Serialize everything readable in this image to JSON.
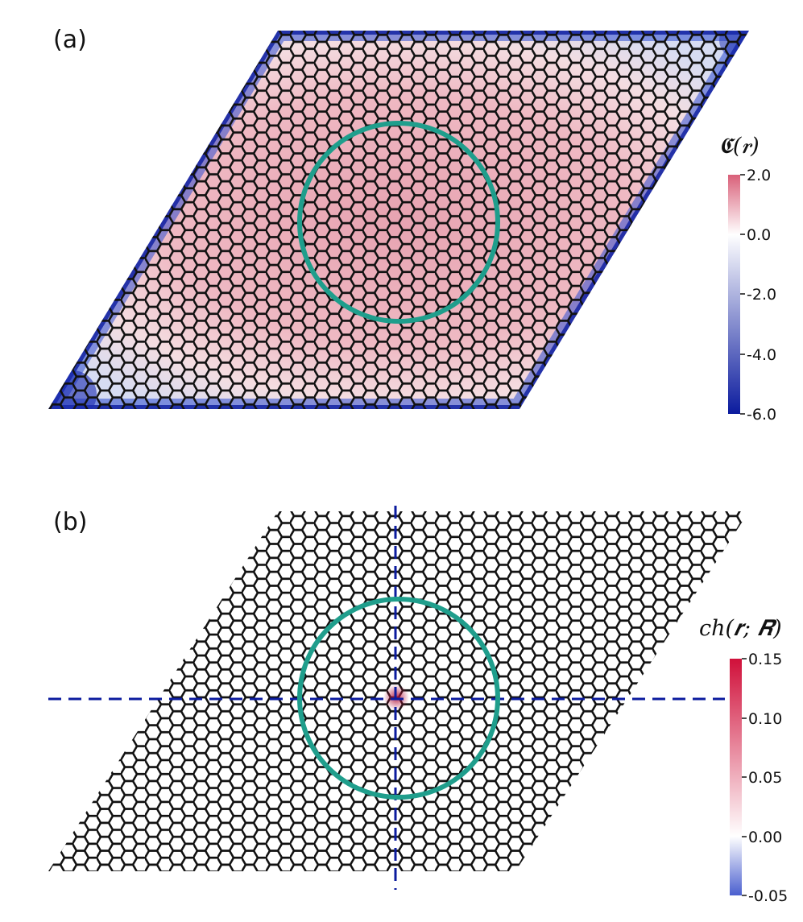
{
  "figure": {
    "panels": [
      {
        "id": "a",
        "label": "(a)",
        "colorbar": {
          "title": "𝕮(𝒓)",
          "ticks": [
            "2.0",
            "0.0",
            "-2.0",
            "-4.0",
            "-6.0"
          ],
          "range": [
            -6.0,
            2.0
          ],
          "colors": [
            "#0b1b9e",
            "#ffffff",
            "#d96079"
          ]
        },
        "circle_color": "#1f9e8c"
      },
      {
        "id": "b",
        "label": "(b)",
        "colorbar": {
          "title": "ch(𝒓; 𝑹)",
          "ticks": [
            "0.15",
            "0.10",
            "0.05",
            "0.00",
            "-0.05"
          ],
          "range": [
            -0.05,
            0.15
          ],
          "colors": [
            "#4a5fcf",
            "#ffffff",
            "#d0103a"
          ]
        },
        "circle_color": "#1f9e8c",
        "crosshair_color": "#0b1b9e"
      }
    ]
  }
}
